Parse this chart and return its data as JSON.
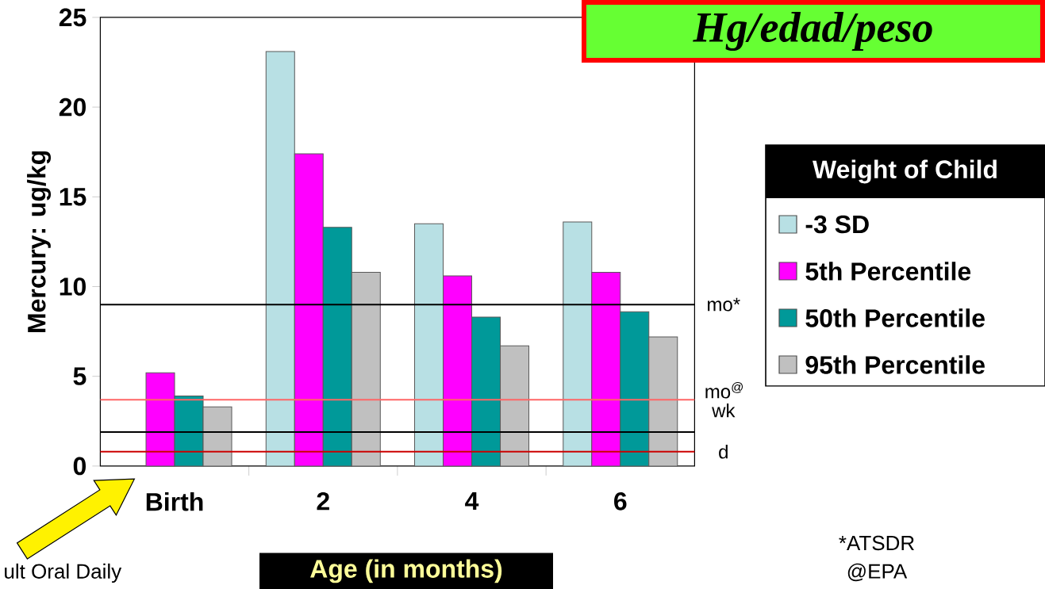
{
  "chart_data": {
    "type": "bar",
    "title": "Hg/edad/peso",
    "xlabel": "Age (in months)",
    "ylabel": "Mercury: ug/kg",
    "legend_title": "Weight of Child",
    "categories": [
      "Birth",
      "2",
      "4",
      "6"
    ],
    "series": [
      {
        "name": "-3 SD",
        "color": "#b8e0e4",
        "values": [
          null,
          23.1,
          13.5,
          13.6
        ]
      },
      {
        "name": "5th Percentile",
        "color": "#ff00ff",
        "values": [
          5.2,
          17.4,
          10.6,
          10.8
        ]
      },
      {
        "name": "50th Percentile",
        "color": "#009999",
        "values": [
          3.9,
          13.3,
          8.3,
          8.6
        ]
      },
      {
        "name": "95th Percentile",
        "color": "#c0c0c0",
        "values": [
          3.3,
          10.8,
          6.7,
          7.2
        ]
      }
    ],
    "ylim": [
      0,
      25
    ],
    "yticks": [
      0,
      5,
      10,
      15,
      20,
      25
    ],
    "ref_lines": [
      {
        "axis": "y",
        "value": 9.0,
        "label": "mo*",
        "color": "#000000"
      },
      {
        "axis": "y",
        "value": 3.7,
        "label": "mo$^{@}$ wk",
        "color": "#ff6666"
      },
      {
        "axis": "y",
        "value": 1.9,
        "label": null,
        "color": "#000000"
      },
      {
        "axis": "y",
        "value": 0.8,
        "label": "d",
        "color": "#cc0000"
      }
    ],
    "annotations": [
      "*ATSDR",
      "@EPA",
      "ult Oral Daily"
    ],
    "legend": "right"
  }
}
